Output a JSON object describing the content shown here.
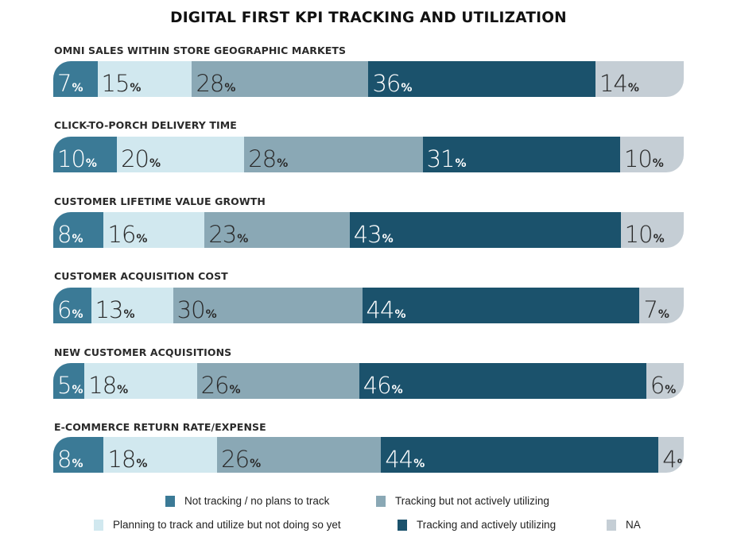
{
  "chart_data": {
    "type": "bar",
    "orientation": "horizontal",
    "stacked": true,
    "normalized_percent": true,
    "title": "DIGITAL FIRST KPI TRACKING AND UTILIZATION",
    "xlabel": "",
    "ylabel": "",
    "value_suffix": "%",
    "categories": [
      "OMNI SALES WITHIN STORE GEOGRAPHIC MARKETS",
      "CLICK-TO-PORCH DELIVERY TIME",
      "CUSTOMER LIFETIME VALUE GROWTH",
      "CUSTOMER ACQUISITION COST",
      "NEW CUSTOMER ACQUISITIONS",
      "E-COMMERCE RETURN RATE/EXPENSE"
    ],
    "series": [
      {
        "name": "Not tracking / no plans to track",
        "color": "#3b7a96",
        "label_color": "#ffffff",
        "values": [
          7,
          10,
          8,
          6,
          5,
          8
        ]
      },
      {
        "name": "Planning to track and utilize but not doing so yet",
        "color": "#d1e8ef",
        "label_color": "#2a2a2a",
        "values": [
          15,
          20,
          16,
          13,
          18,
          18
        ]
      },
      {
        "name": "Tracking but not actively utilizing",
        "color": "#8aa8b5",
        "label_color": "#2a2a2a",
        "values": [
          28,
          28,
          23,
          30,
          26,
          26
        ]
      },
      {
        "name": "Tracking and actively utilizing",
        "color": "#1b526c",
        "label_color": "#ffffff",
        "values": [
          36,
          31,
          43,
          44,
          46,
          44
        ]
      },
      {
        "name": "NA",
        "color": "#c5ced5",
        "label_color": "#2a2a2a",
        "values": [
          14,
          10,
          10,
          7,
          6,
          4
        ]
      }
    ],
    "legend": {
      "placement": "bottom",
      "rows": [
        [
          "Not tracking / no plans to track",
          "Tracking but not actively utilizing"
        ],
        [
          "Planning to track and utilize but not doing so yet",
          "Tracking and actively utilizing",
          "NA"
        ]
      ]
    }
  }
}
